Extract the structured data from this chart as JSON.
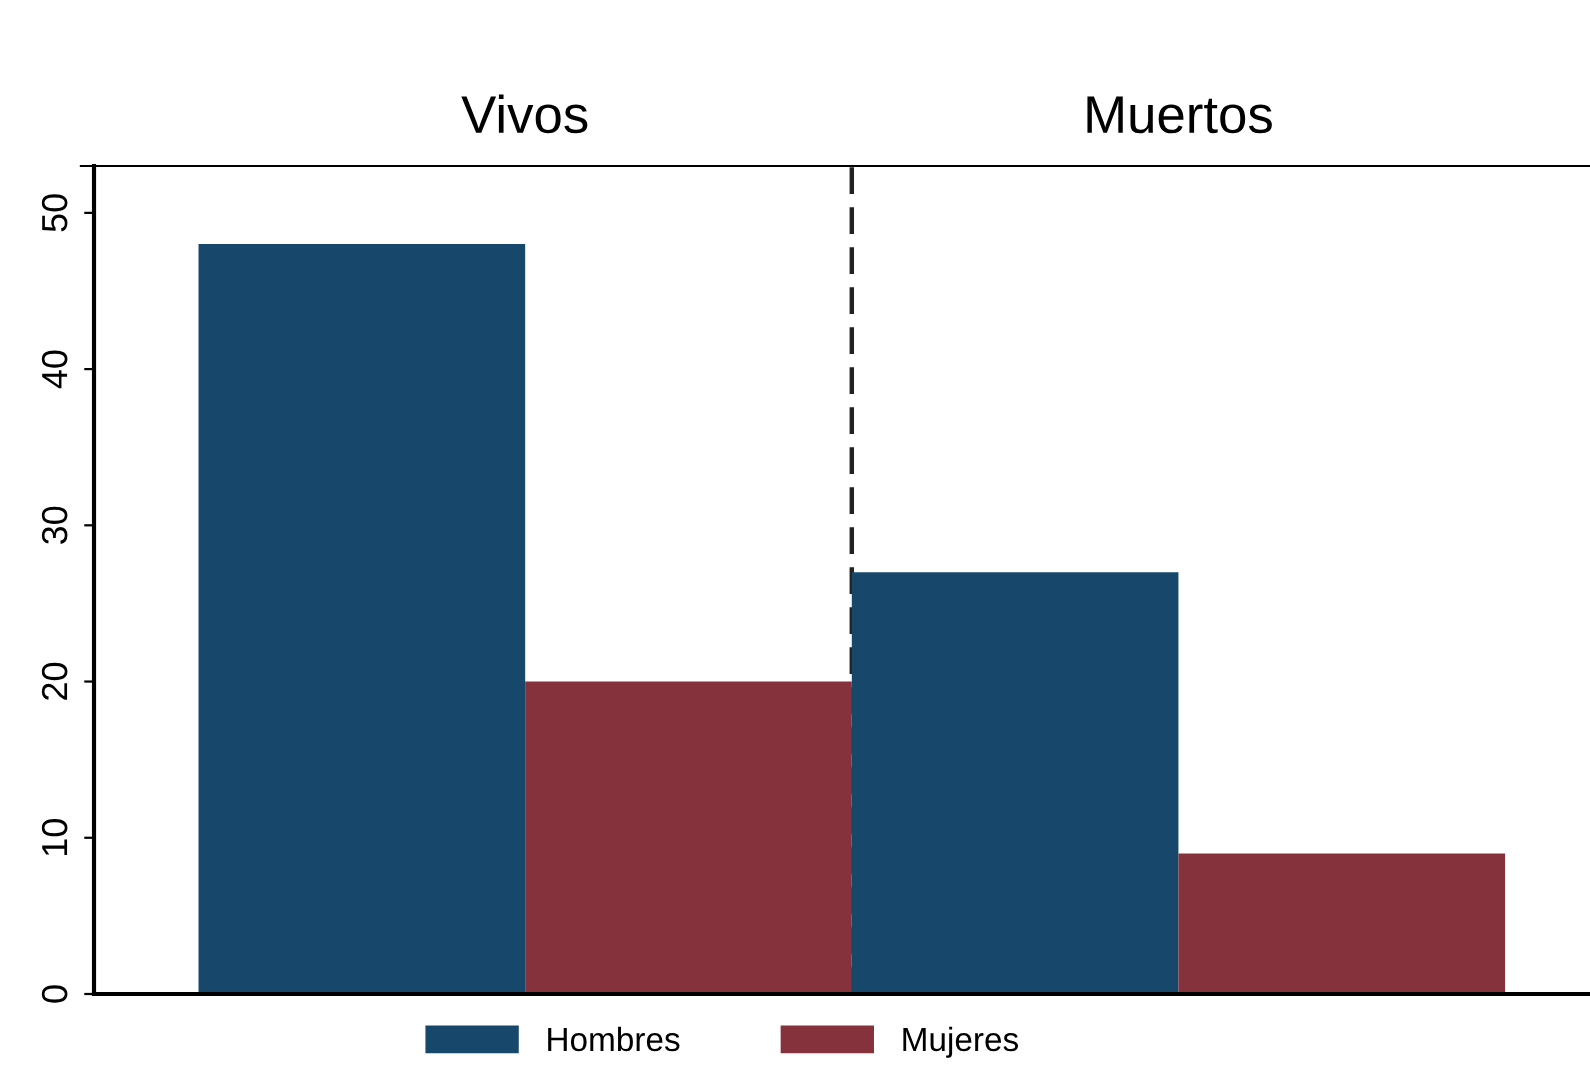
{
  "chart_data": {
    "type": "bar",
    "categories": [
      "Vivos",
      "Muertos"
    ],
    "series": [
      {
        "name": "Hombres",
        "color": "#17486b",
        "values": [
          48,
          27
        ]
      },
      {
        "name": "Mujeres",
        "color": "#85323d",
        "values": [
          20,
          9
        ]
      }
    ],
    "ylim": [
      0,
      53
    ],
    "yticks": [
      0,
      10,
      20,
      30,
      40,
      50
    ],
    "grid": false,
    "legend": "bottom"
  }
}
